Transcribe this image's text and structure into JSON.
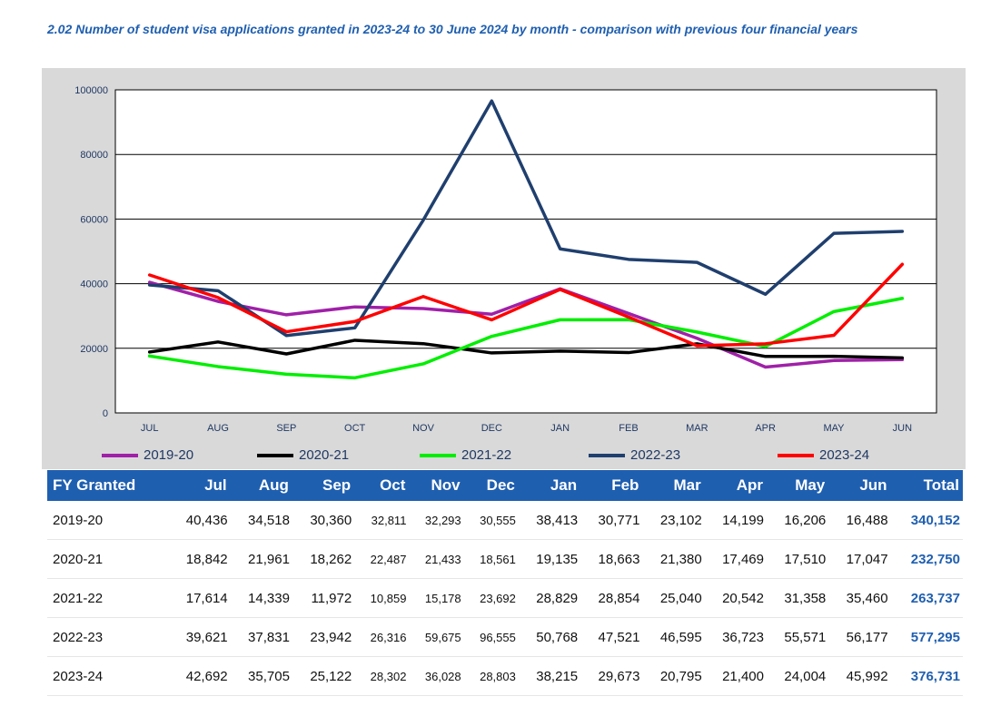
{
  "title": "2.02 Number of student visa applications granted in 2023-24 to 30 June 2024 by month - comparison with previous four financial years",
  "chart_data": {
    "type": "line",
    "categories": [
      "JUL",
      "AUG",
      "SEP",
      "OCT",
      "NOV",
      "DEC",
      "JAN",
      "FEB",
      "MAR",
      "APR",
      "MAY",
      "JUN"
    ],
    "ylim": [
      0,
      100000
    ],
    "yticks": [
      "0",
      "20000",
      "40000",
      "60000",
      "80000",
      "100000"
    ],
    "ytick_values": [
      0,
      20000,
      40000,
      60000,
      80000,
      100000
    ],
    "grid": true,
    "legend_position": "bottom",
    "series": [
      {
        "name": "2019-20",
        "color": "#a020a8",
        "values": [
          40436,
          34518,
          30360,
          32811,
          32293,
          30555,
          38413,
          30771,
          23102,
          14199,
          16206,
          16488
        ]
      },
      {
        "name": "2020-21",
        "color": "#000000",
        "values": [
          18842,
          21961,
          18262,
          22487,
          21433,
          18561,
          19135,
          18663,
          21380,
          17469,
          17510,
          17047
        ]
      },
      {
        "name": "2021-22",
        "color": "#00ee00",
        "values": [
          17614,
          14339,
          11972,
          10859,
          15178,
          23692,
          28829,
          28854,
          25040,
          20542,
          31358,
          35460
        ]
      },
      {
        "name": "2022-23",
        "color": "#1f3f6e",
        "values": [
          39621,
          37831,
          23942,
          26316,
          59675,
          96555,
          50768,
          47521,
          46595,
          36723,
          55571,
          56177
        ]
      },
      {
        "name": "2023-24",
        "color": "#ff0000",
        "values": [
          42692,
          35705,
          25122,
          28302,
          36028,
          28803,
          38215,
          29673,
          20795,
          21400,
          24004,
          45992
        ]
      }
    ]
  },
  "table": {
    "headers": [
      "FY Granted",
      "Jul",
      "Aug",
      "Sep",
      "Oct",
      "Nov",
      "Dec",
      "Jan",
      "Feb",
      "Mar",
      "Apr",
      "May",
      "Jun",
      "Total"
    ],
    "rows": [
      {
        "year": "2019-20",
        "cells": [
          "40,436",
          "34,518",
          "30,360",
          "32,811",
          "32,293",
          "30,555",
          "38,413",
          "30,771",
          "23,102",
          "14,199",
          "16,206",
          "16,488"
        ],
        "total": "340,152"
      },
      {
        "year": "2020-21",
        "cells": [
          "18,842",
          "21,961",
          "18,262",
          "22,487",
          "21,433",
          "18,561",
          "19,135",
          "18,663",
          "21,380",
          "17,469",
          "17,510",
          "17,047"
        ],
        "total": "232,750"
      },
      {
        "year": "2021-22",
        "cells": [
          "17,614",
          "14,339",
          "11,972",
          "10,859",
          "15,178",
          "23,692",
          "28,829",
          "28,854",
          "25,040",
          "20,542",
          "31,358",
          "35,460"
        ],
        "total": "263,737"
      },
      {
        "year": "2022-23",
        "cells": [
          "39,621",
          "37,831",
          "23,942",
          "26,316",
          "59,675",
          "96,555",
          "50,768",
          "47,521",
          "46,595",
          "36,723",
          "55,571",
          "56,177"
        ],
        "total": "577,295"
      },
      {
        "year": "2023-24",
        "cells": [
          "42,692",
          "35,705",
          "25,122",
          "28,302",
          "36,028",
          "28,803",
          "38,215",
          "29,673",
          "20,795",
          "21,400",
          "24,004",
          "45,992"
        ],
        "total": "376,731"
      }
    ]
  }
}
